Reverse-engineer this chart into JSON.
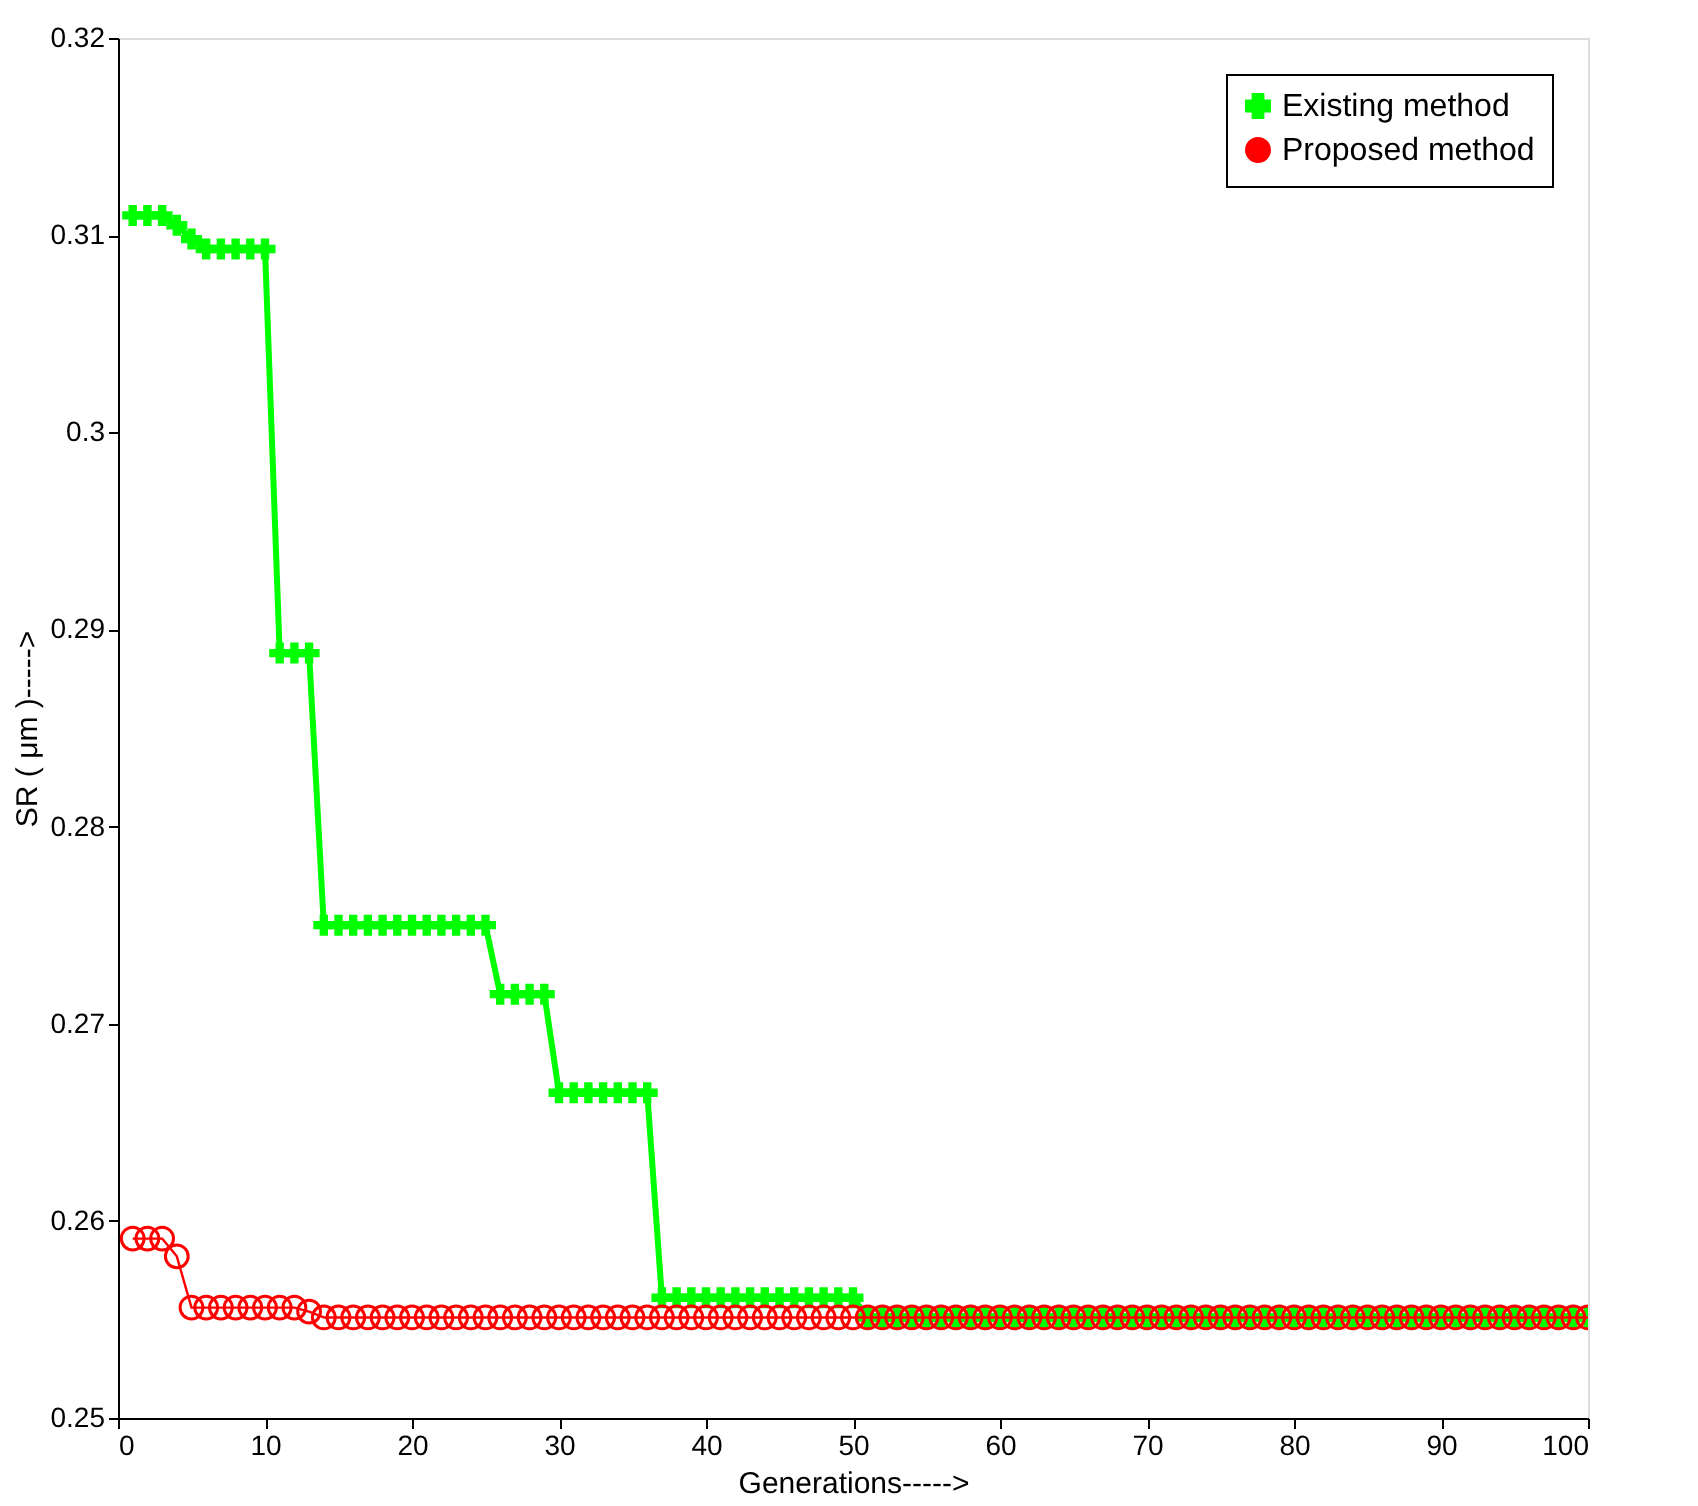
{
  "chart_data": {
    "type": "line",
    "xlabel": "Generations----->",
    "ylabel": "SR ( μm )----->",
    "x": [
      1,
      2,
      3,
      4,
      5,
      6,
      7,
      8,
      9,
      10,
      11,
      12,
      13,
      14,
      15,
      16,
      17,
      18,
      19,
      20,
      21,
      22,
      23,
      24,
      25,
      26,
      27,
      28,
      29,
      30,
      31,
      32,
      33,
      34,
      35,
      36,
      37,
      38,
      39,
      40,
      41,
      42,
      43,
      44,
      45,
      46,
      47,
      48,
      49,
      50,
      51,
      52,
      53,
      54,
      55,
      56,
      57,
      58,
      59,
      60,
      61,
      62,
      63,
      64,
      65,
      66,
      67,
      68,
      69,
      70,
      71,
      72,
      73,
      74,
      75,
      76,
      77,
      78,
      79,
      80,
      81,
      82,
      83,
      84,
      85,
      86,
      87,
      88,
      89,
      90,
      91,
      92,
      93,
      94,
      95,
      96,
      97,
      98,
      99,
      100
    ],
    "series": [
      {
        "name": "Existing method",
        "color": "#00ff00",
        "marker": "cross",
        "values": [
          0.311,
          0.311,
          0.311,
          0.3105,
          0.3098,
          0.3093,
          0.3093,
          0.3093,
          0.3093,
          0.3093,
          0.2888,
          0.2888,
          0.2888,
          0.275,
          0.275,
          0.275,
          0.275,
          0.275,
          0.275,
          0.275,
          0.275,
          0.275,
          0.275,
          0.275,
          0.275,
          0.2715,
          0.2715,
          0.2715,
          0.2715,
          0.2665,
          0.2665,
          0.2665,
          0.2665,
          0.2665,
          0.2665,
          0.2665,
          0.2561,
          0.2561,
          0.2561,
          0.2561,
          0.2561,
          0.2561,
          0.2561,
          0.2561,
          0.2561,
          0.2561,
          0.2561,
          0.2561,
          0.2561,
          0.2561,
          0.2551,
          0.2551,
          0.2551,
          0.2551,
          0.2551,
          0.2551,
          0.2551,
          0.2551,
          0.2551,
          0.2551,
          0.2551,
          0.2551,
          0.2551,
          0.2551,
          0.2551,
          0.2551,
          0.2551,
          0.2551,
          0.2551,
          0.2551,
          0.2551,
          0.2551,
          0.2551,
          0.2551,
          0.2551,
          0.2551,
          0.2551,
          0.2551,
          0.2551,
          0.2551,
          0.2551,
          0.2551,
          0.2551,
          0.2551,
          0.2551,
          0.2551,
          0.2551,
          0.2551,
          0.2551,
          0.2551,
          0.2551,
          0.2551,
          0.2551,
          0.2551,
          0.2551,
          0.2551,
          0.2551,
          0.2551,
          0.2551,
          0.2551
        ]
      },
      {
        "name": "Proposed method",
        "color": "#ff0000",
        "marker": "circle",
        "values": [
          0.2591,
          0.2591,
          0.2591,
          0.2582,
          0.2556,
          0.2556,
          0.2556,
          0.2556,
          0.2556,
          0.2556,
          0.2556,
          0.2556,
          0.2554,
          0.2551,
          0.2551,
          0.2551,
          0.2551,
          0.2551,
          0.2551,
          0.2551,
          0.2551,
          0.2551,
          0.2551,
          0.2551,
          0.2551,
          0.2551,
          0.2551,
          0.2551,
          0.2551,
          0.2551,
          0.2551,
          0.2551,
          0.2551,
          0.2551,
          0.2551,
          0.2551,
          0.2551,
          0.2551,
          0.2551,
          0.2551,
          0.2551,
          0.2551,
          0.2551,
          0.2551,
          0.2551,
          0.2551,
          0.2551,
          0.2551,
          0.2551,
          0.2551,
          0.2551,
          0.2551,
          0.2551,
          0.2551,
          0.2551,
          0.2551,
          0.2551,
          0.2551,
          0.2551,
          0.2551,
          0.2551,
          0.2551,
          0.2551,
          0.2551,
          0.2551,
          0.2551,
          0.2551,
          0.2551,
          0.2551,
          0.2551,
          0.2551,
          0.2551,
          0.2551,
          0.2551,
          0.2551,
          0.2551,
          0.2551,
          0.2551,
          0.2551,
          0.2551,
          0.2551,
          0.2551,
          0.2551,
          0.2551,
          0.2551,
          0.2551,
          0.2551,
          0.2551,
          0.2551,
          0.2551,
          0.2551,
          0.2551,
          0.2551,
          0.2551,
          0.2551,
          0.2551,
          0.2551,
          0.2551,
          0.2551,
          0.2551
        ]
      }
    ],
    "xlim": [
      0,
      100
    ],
    "xticks": [
      0,
      10,
      20,
      30,
      40,
      50,
      60,
      70,
      80,
      90,
      100
    ],
    "ylim": [
      0.25,
      0.32
    ],
    "yticks": [
      0.25,
      0.26,
      0.27,
      0.28,
      0.29,
      0.3,
      0.31,
      0.32
    ],
    "grid": false,
    "legend": "top right",
    "line_style": "solid"
  }
}
